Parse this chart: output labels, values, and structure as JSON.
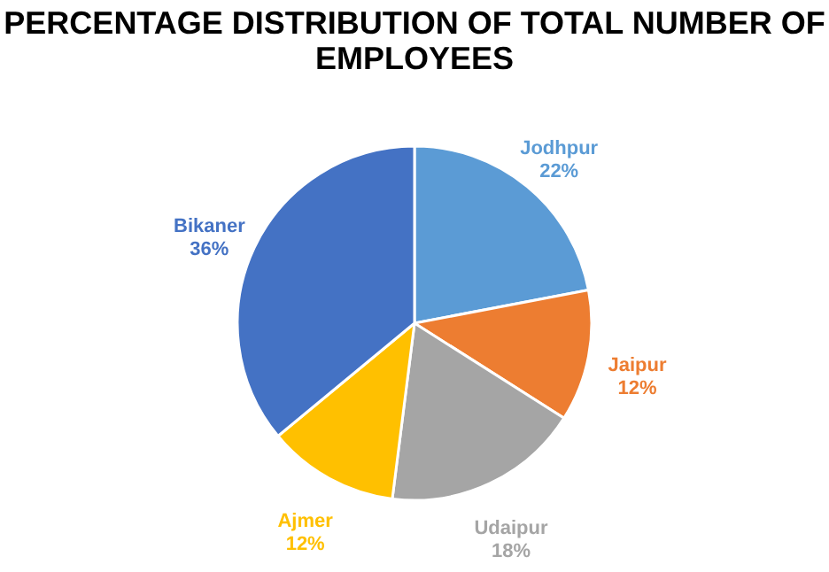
{
  "chart_data": {
    "type": "pie",
    "title": "PERCENTAGE DISTRIBUTION OF TOTAL NUMBER OF EMPLOYEES",
    "categories": [
      "Jodhpur",
      "Jaipur",
      "Udaipur",
      "Ajmer",
      "Bikaner"
    ],
    "values": [
      22,
      12,
      18,
      12,
      36
    ],
    "value_labels": [
      "22%",
      "12%",
      "18%",
      "12%",
      "36%"
    ],
    "colors": [
      "#5b9bd5",
      "#ed7d31",
      "#a5a5a5",
      "#ffc000",
      "#4472c4"
    ],
    "legend": false
  }
}
